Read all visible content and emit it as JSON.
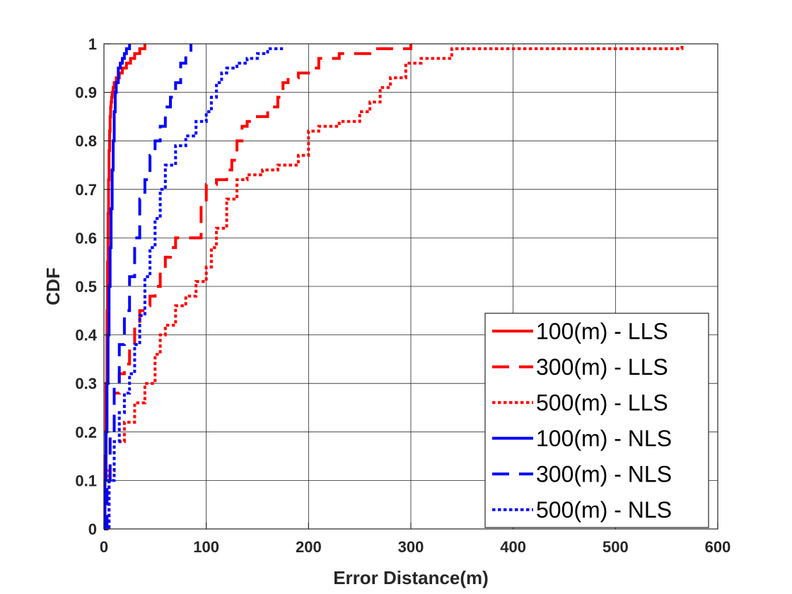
{
  "chart_data": {
    "type": "line",
    "xlabel": "Error Distance(m)",
    "ylabel": "CDF",
    "xlim": [
      0,
      600
    ],
    "ylim": [
      0,
      1
    ],
    "xticks": [
      0,
      100,
      200,
      300,
      400,
      500,
      600
    ],
    "yticks": [
      0,
      0.1,
      0.2,
      0.3,
      0.4,
      0.5,
      0.6,
      0.7,
      0.8,
      0.9,
      1
    ],
    "grid": true,
    "legend_position": "bottom-right",
    "series": [
      {
        "name": "100(m) - LLS",
        "color": "#ff0000",
        "style": "solid",
        "x": [
          0,
          1,
          2,
          3,
          3.5,
          4,
          4.5,
          5,
          5.5,
          6,
          6.5,
          7,
          7.5,
          8,
          9,
          10,
          12,
          15,
          18,
          22,
          26,
          30,
          35,
          40
        ],
        "y": [
          0,
          0.15,
          0.3,
          0.45,
          0.55,
          0.65,
          0.72,
          0.78,
          0.82,
          0.85,
          0.87,
          0.88,
          0.89,
          0.9,
          0.91,
          0.92,
          0.93,
          0.94,
          0.95,
          0.96,
          0.97,
          0.98,
          0.99,
          1.0
        ]
      },
      {
        "name": "300(m) - LLS",
        "color": "#ff0000",
        "style": "dash",
        "x": [
          0,
          3,
          6,
          10,
          15,
          20,
          25,
          30,
          35,
          40,
          45,
          50,
          55,
          60,
          65,
          70,
          80,
          90,
          95,
          100,
          110,
          120,
          125,
          130,
          135,
          140,
          150,
          160,
          170,
          175,
          180,
          190,
          200,
          210,
          230,
          260,
          300
        ],
        "y": [
          0,
          0.1,
          0.2,
          0.28,
          0.32,
          0.34,
          0.38,
          0.42,
          0.45,
          0.46,
          0.48,
          0.5,
          0.53,
          0.56,
          0.58,
          0.6,
          0.6,
          0.6,
          0.67,
          0.71,
          0.72,
          0.74,
          0.76,
          0.8,
          0.83,
          0.84,
          0.85,
          0.87,
          0.89,
          0.92,
          0.93,
          0.94,
          0.95,
          0.97,
          0.98,
          0.99,
          1.0
        ]
      },
      {
        "name": "500(m) - LLS",
        "color": "#ff0000",
        "style": "dot",
        "x": [
          0,
          5,
          10,
          20,
          30,
          40,
          50,
          55,
          60,
          70,
          80,
          90,
          100,
          105,
          110,
          120,
          130,
          140,
          155,
          170,
          190,
          200,
          210,
          230,
          250,
          260,
          270,
          280,
          295,
          310,
          340,
          400,
          500,
          565
        ],
        "y": [
          0,
          0.12,
          0.18,
          0.22,
          0.26,
          0.3,
          0.36,
          0.4,
          0.42,
          0.46,
          0.48,
          0.51,
          0.54,
          0.58,
          0.62,
          0.68,
          0.72,
          0.73,
          0.74,
          0.75,
          0.77,
          0.82,
          0.83,
          0.84,
          0.86,
          0.88,
          0.91,
          0.93,
          0.96,
          0.97,
          0.99,
          0.99,
          0.99,
          1.0
        ]
      },
      {
        "name": "100(m) - NLS",
        "color": "#0000ff",
        "style": "solid",
        "x": [
          0,
          1,
          2,
          3,
          4,
          5,
          6,
          7,
          8,
          9,
          10,
          11,
          12,
          14,
          16,
          18,
          20,
          22,
          25
        ],
        "y": [
          0,
          0.1,
          0.2,
          0.3,
          0.4,
          0.5,
          0.58,
          0.66,
          0.74,
          0.8,
          0.86,
          0.9,
          0.92,
          0.95,
          0.96,
          0.97,
          0.98,
          0.99,
          1.0
        ]
      },
      {
        "name": "300(m) - NLS",
        "color": "#0000ff",
        "style": "dash",
        "x": [
          0,
          3,
          6,
          10,
          15,
          20,
          25,
          30,
          35,
          40,
          45,
          50,
          55,
          60,
          65,
          70,
          75,
          80,
          85
        ],
        "y": [
          0,
          0.1,
          0.2,
          0.3,
          0.38,
          0.45,
          0.52,
          0.6,
          0.68,
          0.72,
          0.77,
          0.8,
          0.83,
          0.87,
          0.89,
          0.92,
          0.96,
          0.98,
          1.0
        ]
      },
      {
        "name": "500(m) - NLS",
        "color": "#0000ff",
        "style": "dot",
        "x": [
          0,
          5,
          10,
          15,
          20,
          25,
          30,
          35,
          40,
          45,
          50,
          55,
          60,
          70,
          80,
          90,
          100,
          105,
          110,
          115,
          120,
          130,
          140,
          150,
          160,
          175
        ],
        "y": [
          0,
          0.1,
          0.18,
          0.24,
          0.28,
          0.32,
          0.38,
          0.44,
          0.52,
          0.58,
          0.64,
          0.7,
          0.75,
          0.79,
          0.81,
          0.84,
          0.86,
          0.89,
          0.92,
          0.94,
          0.95,
          0.96,
          0.97,
          0.98,
          0.99,
          0.99
        ]
      }
    ]
  }
}
